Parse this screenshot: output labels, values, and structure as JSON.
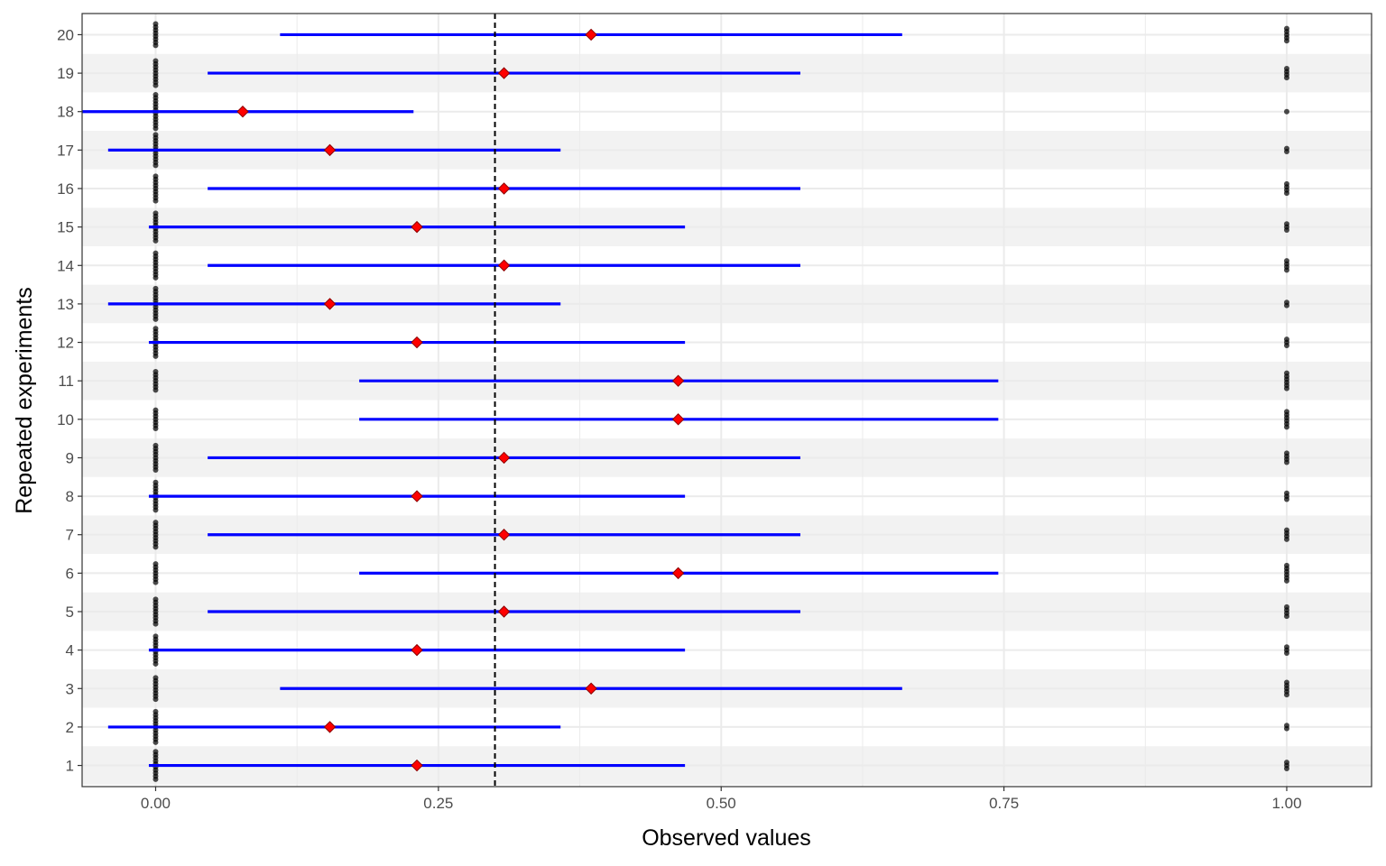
{
  "chart_data": {
    "type": "scatter",
    "title": "",
    "xlabel": "Observed values",
    "ylabel": "Repeated experiments",
    "xlim": [
      -0.065,
      1.075
    ],
    "ylim": [
      0.45,
      20.55
    ],
    "x_ticks": [
      0,
      0.25,
      0.5,
      0.75,
      1
    ],
    "x_tick_labels": [
      "0.00",
      "0.25",
      "0.50",
      "0.75",
      "1.00"
    ],
    "y_ticks": [
      1,
      2,
      3,
      4,
      5,
      6,
      7,
      8,
      9,
      10,
      11,
      12,
      13,
      14,
      15,
      16,
      17,
      18,
      19,
      20
    ],
    "y_tick_labels": [
      "1",
      "2",
      "3",
      "4",
      "5",
      "6",
      "7",
      "8",
      "9",
      "10",
      "11",
      "12",
      "13",
      "14",
      "15",
      "16",
      "17",
      "18",
      "19",
      "20"
    ],
    "reference_line": 0.3,
    "grid": true,
    "alternating_row_bands": true,
    "colors": {
      "interval": "#0000ff",
      "estimate_fill": "#ff0000",
      "estimate_edge": "#8b0000",
      "observations": "#000000",
      "reference_line": "#000000",
      "band": "#f2f2f2",
      "grid": "#ebebeb"
    },
    "series": [
      {
        "name": "",
        "type": "interval_estimate",
        "experiments": [
          {
            "id": 1,
            "estimate": 0.231,
            "lower": -0.006,
            "upper": 0.468,
            "n_zero": 10,
            "n_one": 3
          },
          {
            "id": 2,
            "estimate": 0.154,
            "lower": -0.042,
            "upper": 0.358,
            "n_zero": 11,
            "n_one": 2
          },
          {
            "id": 3,
            "estimate": 0.385,
            "lower": 0.11,
            "upper": 0.66,
            "n_zero": 8,
            "n_one": 5
          },
          {
            "id": 4,
            "estimate": 0.231,
            "lower": -0.006,
            "upper": 0.468,
            "n_zero": 10,
            "n_one": 3
          },
          {
            "id": 5,
            "estimate": 0.308,
            "lower": 0.046,
            "upper": 0.57,
            "n_zero": 9,
            "n_one": 4
          },
          {
            "id": 6,
            "estimate": 0.462,
            "lower": 0.18,
            "upper": 0.745,
            "n_zero": 7,
            "n_one": 6
          },
          {
            "id": 7,
            "estimate": 0.308,
            "lower": 0.046,
            "upper": 0.57,
            "n_zero": 9,
            "n_one": 4
          },
          {
            "id": 8,
            "estimate": 0.231,
            "lower": -0.006,
            "upper": 0.468,
            "n_zero": 10,
            "n_one": 3
          },
          {
            "id": 9,
            "estimate": 0.308,
            "lower": 0.046,
            "upper": 0.57,
            "n_zero": 9,
            "n_one": 4
          },
          {
            "id": 10,
            "estimate": 0.462,
            "lower": 0.18,
            "upper": 0.745,
            "n_zero": 7,
            "n_one": 6
          },
          {
            "id": 11,
            "estimate": 0.462,
            "lower": 0.18,
            "upper": 0.745,
            "n_zero": 7,
            "n_one": 6
          },
          {
            "id": 12,
            "estimate": 0.231,
            "lower": -0.006,
            "upper": 0.468,
            "n_zero": 10,
            "n_one": 3
          },
          {
            "id": 13,
            "estimate": 0.154,
            "lower": -0.042,
            "upper": 0.358,
            "n_zero": 11,
            "n_one": 2
          },
          {
            "id": 14,
            "estimate": 0.308,
            "lower": 0.046,
            "upper": 0.57,
            "n_zero": 9,
            "n_one": 4
          },
          {
            "id": 15,
            "estimate": 0.231,
            "lower": -0.006,
            "upper": 0.468,
            "n_zero": 10,
            "n_one": 3
          },
          {
            "id": 16,
            "estimate": 0.308,
            "lower": 0.046,
            "upper": 0.57,
            "n_zero": 9,
            "n_one": 4
          },
          {
            "id": 17,
            "estimate": 0.154,
            "lower": -0.042,
            "upper": 0.358,
            "n_zero": 11,
            "n_one": 2
          },
          {
            "id": 18,
            "estimate": 0.077,
            "lower": -0.065,
            "upper": 0.228,
            "n_zero": 12,
            "n_one": 1
          },
          {
            "id": 19,
            "estimate": 0.308,
            "lower": 0.046,
            "upper": 0.57,
            "n_zero": 9,
            "n_one": 4
          },
          {
            "id": 20,
            "estimate": 0.385,
            "lower": 0.11,
            "upper": 0.66,
            "n_zero": 8,
            "n_one": 5
          }
        ]
      }
    ]
  }
}
